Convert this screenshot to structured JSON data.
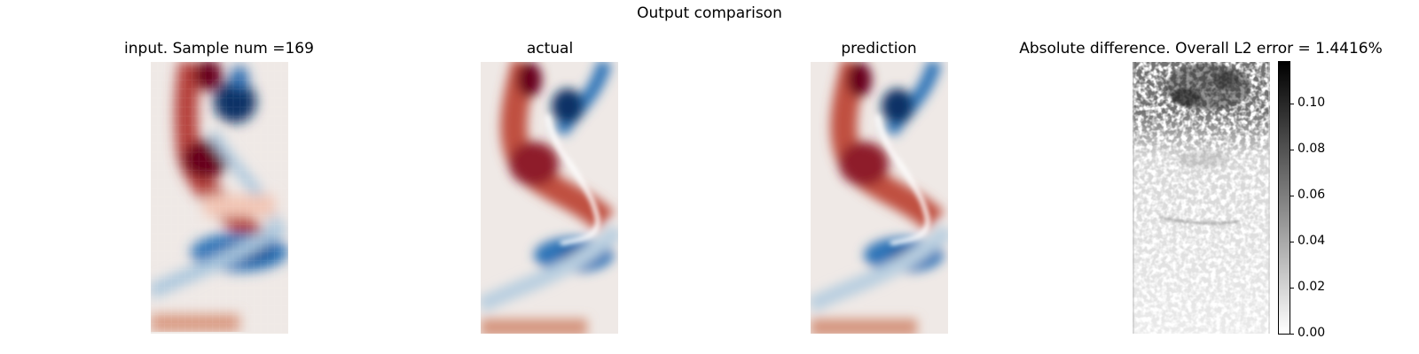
{
  "figure": {
    "suptitle": "Output comparison"
  },
  "panels": [
    {
      "title": "input. Sample num =169"
    },
    {
      "title": "actual"
    },
    {
      "title": "prediction"
    },
    {
      "title": "Absolute difference. Overall L2 error = 1.4416%"
    }
  ],
  "colorbar": {
    "ticks": [
      "0.00",
      "0.02",
      "0.04",
      "0.06",
      "0.08",
      "0.10"
    ]
  },
  "colors": {
    "red": "#67001f",
    "blue": "#0a3166",
    "background": "#efe9e6"
  },
  "chart_data": [
    {
      "type": "heatmap",
      "title": "input. Sample num =169",
      "resolution": "coarse",
      "cmap": "balance (diverging red/blue)",
      "axes": "off"
    },
    {
      "type": "heatmap",
      "title": "actual",
      "resolution": "fine",
      "cmap": "balance (diverging red/blue)",
      "axes": "off"
    },
    {
      "type": "heatmap",
      "title": "prediction",
      "resolution": "fine",
      "cmap": "balance (diverging red/blue)",
      "axes": "off"
    },
    {
      "type": "heatmap",
      "title": "Absolute difference. Overall L2 error = 1.4416%",
      "cmap": "gray_r",
      "colorbar_range": [
        0,
        0.118
      ],
      "colorbar_ticks": [
        0.0,
        0.02,
        0.04,
        0.06,
        0.08,
        0.1
      ],
      "axes": "off"
    }
  ]
}
